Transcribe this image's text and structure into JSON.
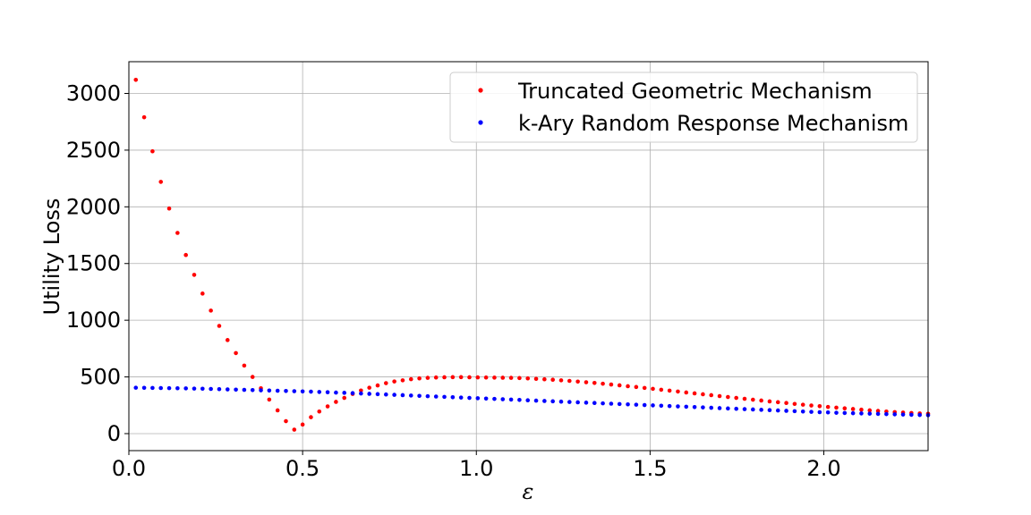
{
  "chart_data": {
    "type": "scatter",
    "title": "",
    "xlabel": "ε",
    "ylabel": "Utility Loss",
    "xlim": [
      0.0,
      2.3
    ],
    "ylim": [
      -150,
      3280
    ],
    "x_ticks": [
      0.0,
      0.5,
      1.0,
      1.5,
      2.0
    ],
    "x_tick_labels": [
      "0.0",
      "0.5",
      "1.0",
      "1.5",
      "2.0"
    ],
    "y_ticks": [
      0,
      500,
      1000,
      1500,
      2000,
      2500,
      3000
    ],
    "y_tick_labels": [
      "0",
      "500",
      "1000",
      "1500",
      "2000",
      "2500",
      "3000"
    ],
    "grid": true,
    "legend_position": "top-right",
    "series": [
      {
        "name": "Truncated Geometric Mechanism",
        "color": "#ff0000",
        "x": [
          0.02,
          0.044,
          0.068,
          0.092,
          0.116,
          0.14,
          0.164,
          0.188,
          0.212,
          0.236,
          0.26,
          0.284,
          0.308,
          0.332,
          0.356,
          0.38,
          0.404,
          0.428,
          0.452,
          0.476,
          0.5,
          0.524,
          0.548,
          0.572,
          0.596,
          0.62,
          0.644,
          0.668,
          0.692,
          0.716,
          0.74,
          0.764,
          0.788,
          0.812,
          0.836,
          0.86,
          0.884,
          0.908,
          0.932,
          0.956,
          0.98,
          1.004,
          1.028,
          1.052,
          1.076,
          1.1,
          1.124,
          1.148,
          1.172,
          1.196,
          1.22,
          1.244,
          1.268,
          1.292,
          1.316,
          1.34,
          1.364,
          1.388,
          1.412,
          1.436,
          1.46,
          1.484,
          1.508,
          1.532,
          1.556,
          1.58,
          1.604,
          1.628,
          1.652,
          1.676,
          1.7,
          1.724,
          1.748,
          1.772,
          1.796,
          1.82,
          1.844,
          1.868,
          1.892,
          1.916,
          1.94,
          1.964,
          1.988,
          2.012,
          2.036,
          2.06,
          2.084,
          2.108,
          2.132,
          2.156,
          2.18,
          2.204,
          2.228,
          2.252,
          2.276,
          2.3
        ],
        "y": [
          3120,
          2790,
          2490,
          2220,
          1985,
          1770,
          1575,
          1400,
          1235,
          1085,
          950,
          825,
          710,
          600,
          500,
          400,
          300,
          205,
          110,
          35,
          80,
          145,
          195,
          240,
          280,
          315,
          350,
          380,
          405,
          425,
          445,
          460,
          470,
          480,
          487,
          492,
          495,
          497,
          498,
          498,
          497,
          496,
          495,
          494,
          493,
          492,
          490,
          487,
          483,
          479,
          475,
          470,
          465,
          459,
          453,
          447,
          440,
          433,
          426,
          418,
          411,
          403,
          395,
          387,
          379,
          371,
          363,
          355,
          347,
          339,
          331,
          323,
          315,
          307,
          299,
          292,
          284,
          277,
          270,
          262,
          255,
          248,
          242,
          235,
          229,
          223,
          217,
          211,
          205,
          200,
          195,
          190,
          186,
          182,
          178,
          175
        ]
      },
      {
        "name": "k-Ary Random Response Mechanism",
        "color": "#0000ff",
        "x": [
          0.02,
          0.044,
          0.068,
          0.092,
          0.116,
          0.14,
          0.164,
          0.188,
          0.212,
          0.236,
          0.26,
          0.284,
          0.308,
          0.332,
          0.356,
          0.38,
          0.404,
          0.428,
          0.452,
          0.476,
          0.5,
          0.524,
          0.548,
          0.572,
          0.596,
          0.62,
          0.644,
          0.668,
          0.692,
          0.716,
          0.74,
          0.764,
          0.788,
          0.812,
          0.836,
          0.86,
          0.884,
          0.908,
          0.932,
          0.956,
          0.98,
          1.004,
          1.028,
          1.052,
          1.076,
          1.1,
          1.124,
          1.148,
          1.172,
          1.196,
          1.22,
          1.244,
          1.268,
          1.292,
          1.316,
          1.34,
          1.364,
          1.388,
          1.412,
          1.436,
          1.46,
          1.484,
          1.508,
          1.532,
          1.556,
          1.58,
          1.604,
          1.628,
          1.652,
          1.676,
          1.7,
          1.724,
          1.748,
          1.772,
          1.796,
          1.82,
          1.844,
          1.868,
          1.892,
          1.916,
          1.94,
          1.964,
          1.988,
          2.012,
          2.036,
          2.06,
          2.084,
          2.108,
          2.132,
          2.156,
          2.18,
          2.204,
          2.228,
          2.252,
          2.276,
          2.3
        ],
        "y": [
          405,
          404,
          403,
          402,
          401,
          400,
          399,
          397,
          396,
          394,
          392,
          390,
          388,
          386,
          384,
          382,
          380,
          378,
          376,
          374,
          372,
          370,
          367,
          365,
          362,
          360,
          357,
          354,
          351,
          348,
          345,
          342,
          339,
          336,
          333,
          330,
          327,
          324,
          321,
          318,
          315,
          312,
          309,
          306,
          303,
          300,
          297,
          294,
          291,
          288,
          285,
          282,
          279,
          276,
          273,
          270,
          267,
          264,
          261,
          258,
          255,
          252,
          249,
          246,
          243,
          240,
          237,
          234,
          231,
          228,
          225,
          222,
          219,
          216,
          213,
          210,
          207,
          204,
          201,
          198,
          195,
          192,
          189,
          187,
          184,
          182,
          180,
          178,
          176,
          174,
          172,
          170,
          168,
          166,
          164,
          162
        ]
      }
    ]
  }
}
